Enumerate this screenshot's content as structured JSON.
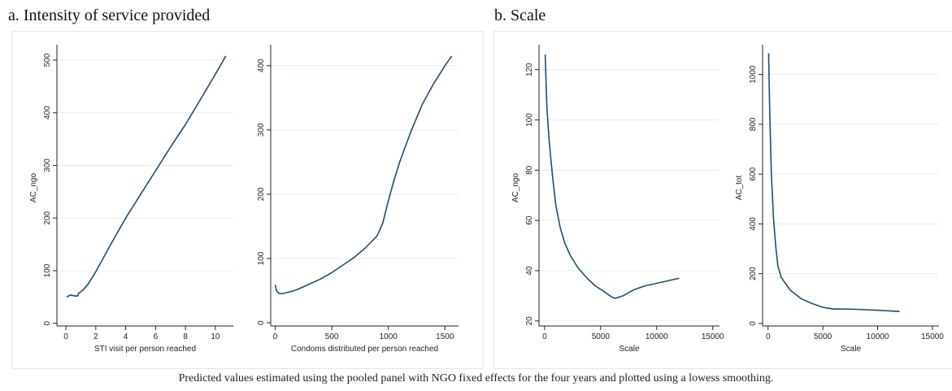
{
  "groups": {
    "a_title": "a. Intensity of service provided",
    "b_title": "b. Scale"
  },
  "caption": "Predicted values estimated using the pooled panel with NGO fixed effects for the four years and plotted using a lowess smoothing.",
  "colors": {
    "line": "#1f4e6e",
    "grid": "#e3edf2",
    "axis": "#222222",
    "frame": "#dfe8ee"
  },
  "chart_data": [
    {
      "type": "line",
      "xlabel": "STI visit per person reached",
      "ylabel": "AC_ngo",
      "xlim": [
        -0.6,
        11.2
      ],
      "ylim": [
        -5,
        520
      ],
      "xticks": [
        0,
        2,
        4,
        6,
        8,
        10
      ],
      "yticks": [
        0,
        100,
        200,
        300,
        400,
        500
      ],
      "grid": true,
      "series": [
        {
          "x": [
            0.05,
            0.3,
            0.6,
            0.8,
            0.85,
            1.0,
            1.2,
            1.5,
            2.0,
            3.0,
            4.0,
            5.0,
            6.0,
            7.0,
            8.0,
            9.0,
            10.0,
            10.7
          ],
          "y": [
            50,
            54,
            52,
            52,
            57,
            60,
            65,
            75,
            98,
            150,
            200,
            245,
            290,
            335,
            378,
            425,
            473,
            508
          ]
        }
      ]
    },
    {
      "type": "line",
      "xlabel": "Condoms distributed per person reached",
      "ylabel": "",
      "xlim": [
        -40,
        1620
      ],
      "ylim": [
        -5,
        425
      ],
      "xticks": [
        0,
        500,
        1000,
        1500
      ],
      "yticks": [
        0,
        100,
        200,
        300,
        400
      ],
      "grid": true,
      "series": [
        {
          "x": [
            0,
            10,
            30,
            60,
            100,
            150,
            200,
            300,
            400,
            500,
            600,
            700,
            800,
            900,
            950,
            1000,
            1050,
            1100,
            1200,
            1300,
            1400,
            1500,
            1560
          ],
          "y": [
            59,
            50,
            46,
            45,
            47,
            49,
            52,
            60,
            68,
            78,
            90,
            102,
            117,
            135,
            155,
            190,
            222,
            250,
            298,
            340,
            372,
            400,
            415
          ]
        }
      ]
    },
    {
      "type": "line",
      "xlabel": "Scale",
      "ylabel": "AC_ngo",
      "xlim": [
        -500,
        15600
      ],
      "ylim": [
        18,
        128
      ],
      "xticks": [
        0,
        5000,
        10000,
        15000
      ],
      "yticks": [
        20,
        40,
        60,
        80,
        100,
        120
      ],
      "grid": true,
      "series": [
        {
          "x": [
            50,
            200,
            400,
            700,
            1000,
            1400,
            1800,
            2300,
            3000,
            3800,
            4500,
            5200,
            6000,
            6300,
            7000,
            8000,
            9000,
            10000,
            11000,
            12000
          ],
          "y": [
            126,
            105,
            92,
            78,
            66,
            57,
            51,
            46,
            41,
            37,
            34,
            32,
            29.5,
            29,
            30,
            32.5,
            34,
            35,
            36,
            37
          ]
        }
      ]
    },
    {
      "type": "line",
      "xlabel": "Scale",
      "ylabel": "AC_tot",
      "xlim": [
        -500,
        15600
      ],
      "ylim": [
        -10,
        1100
      ],
      "xticks": [
        0,
        5000,
        10000,
        15000
      ],
      "yticks": [
        0,
        200,
        400,
        600,
        800,
        1000
      ],
      "grid": true,
      "series": [
        {
          "x": [
            50,
            150,
            300,
            500,
            700,
            900,
            1200,
            1600,
            2000,
            3000,
            4000,
            5000,
            6000,
            7000,
            8000,
            10000,
            12000
          ],
          "y": [
            1085,
            850,
            600,
            420,
            310,
            230,
            185,
            160,
            135,
            100,
            80,
            65,
            58,
            58,
            57,
            53,
            48
          ]
        }
      ]
    }
  ]
}
